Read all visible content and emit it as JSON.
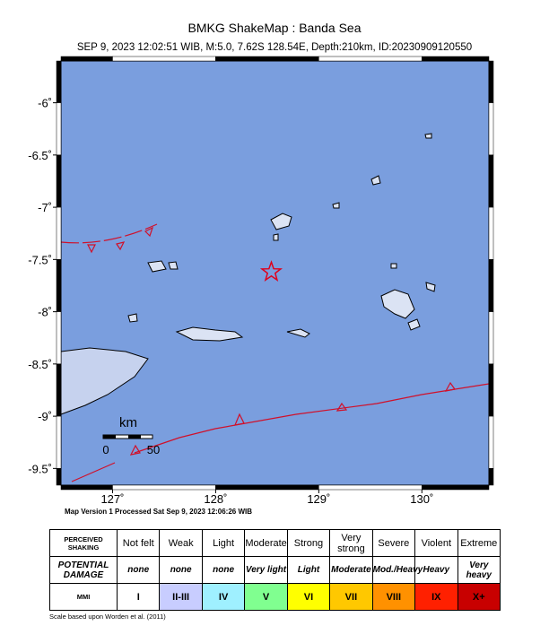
{
  "title": "BMKG ShakeMap : Banda Sea",
  "subtitle": "SEP 9, 2023 12:02:51 WIB, M:5.0, 7.62S 128.54E, Depth:210km, ID:20230909120550",
  "map": {
    "latlim": [
      -5.6,
      -9.66
    ],
    "lonlim": [
      126.5,
      130.65
    ],
    "lat_ticks": [
      {
        "value": -6,
        "label": "-6˚"
      },
      {
        "value": -6.5,
        "label": "-6.5˚"
      },
      {
        "value": -7,
        "label": "-7˚"
      },
      {
        "value": -7.5,
        "label": "-7.5˚"
      },
      {
        "value": -8,
        "label": "-8˚"
      },
      {
        "value": -8.5,
        "label": "-8.5˚"
      },
      {
        "value": -9,
        "label": "-9˚"
      },
      {
        "value": -9.5,
        "label": "-9.5˚"
      }
    ],
    "lon_ticks": [
      {
        "value": 127,
        "label": "127˚"
      },
      {
        "value": 128,
        "label": "128˚"
      },
      {
        "value": 129,
        "label": "129˚"
      },
      {
        "value": 130,
        "label": "130˚"
      }
    ],
    "epicenter": {
      "lat": -7.62,
      "lon": 128.54
    }
  },
  "scale_bar": {
    "unit": "km",
    "labels": [
      "0",
      "50"
    ]
  },
  "processed": "Map Version 1 Processed Sat Sep  9, 2023 12:06:26 WIB",
  "legend": {
    "rows": [
      {
        "header": "PERCEIVED SHAKING",
        "cells": [
          "Not felt",
          "Weak",
          "Light",
          "Moderate",
          "Strong",
          "Very strong",
          "Severe",
          "Violent",
          "Extreme"
        ]
      },
      {
        "header": "POTENTIAL DAMAGE",
        "cells": [
          "none",
          "none",
          "none",
          "Very light",
          "Light",
          "Moderate",
          "Mod./Heavy",
          "Heavy",
          "Very heavy"
        ]
      },
      {
        "header": "MMI",
        "cells": [
          "I",
          "II-III",
          "IV",
          "V",
          "VI",
          "VII",
          "VIII",
          "IX",
          "X+"
        ]
      }
    ],
    "colors": [
      "#ffffff",
      "#c8cdff",
      "#9ff0ff",
      "#80ff90",
      "#ffff00",
      "#ffc800",
      "#ff9100",
      "#ff2000",
      "#c80000"
    ]
  },
  "note": "Scale based upon Worden et al. (2011)"
}
